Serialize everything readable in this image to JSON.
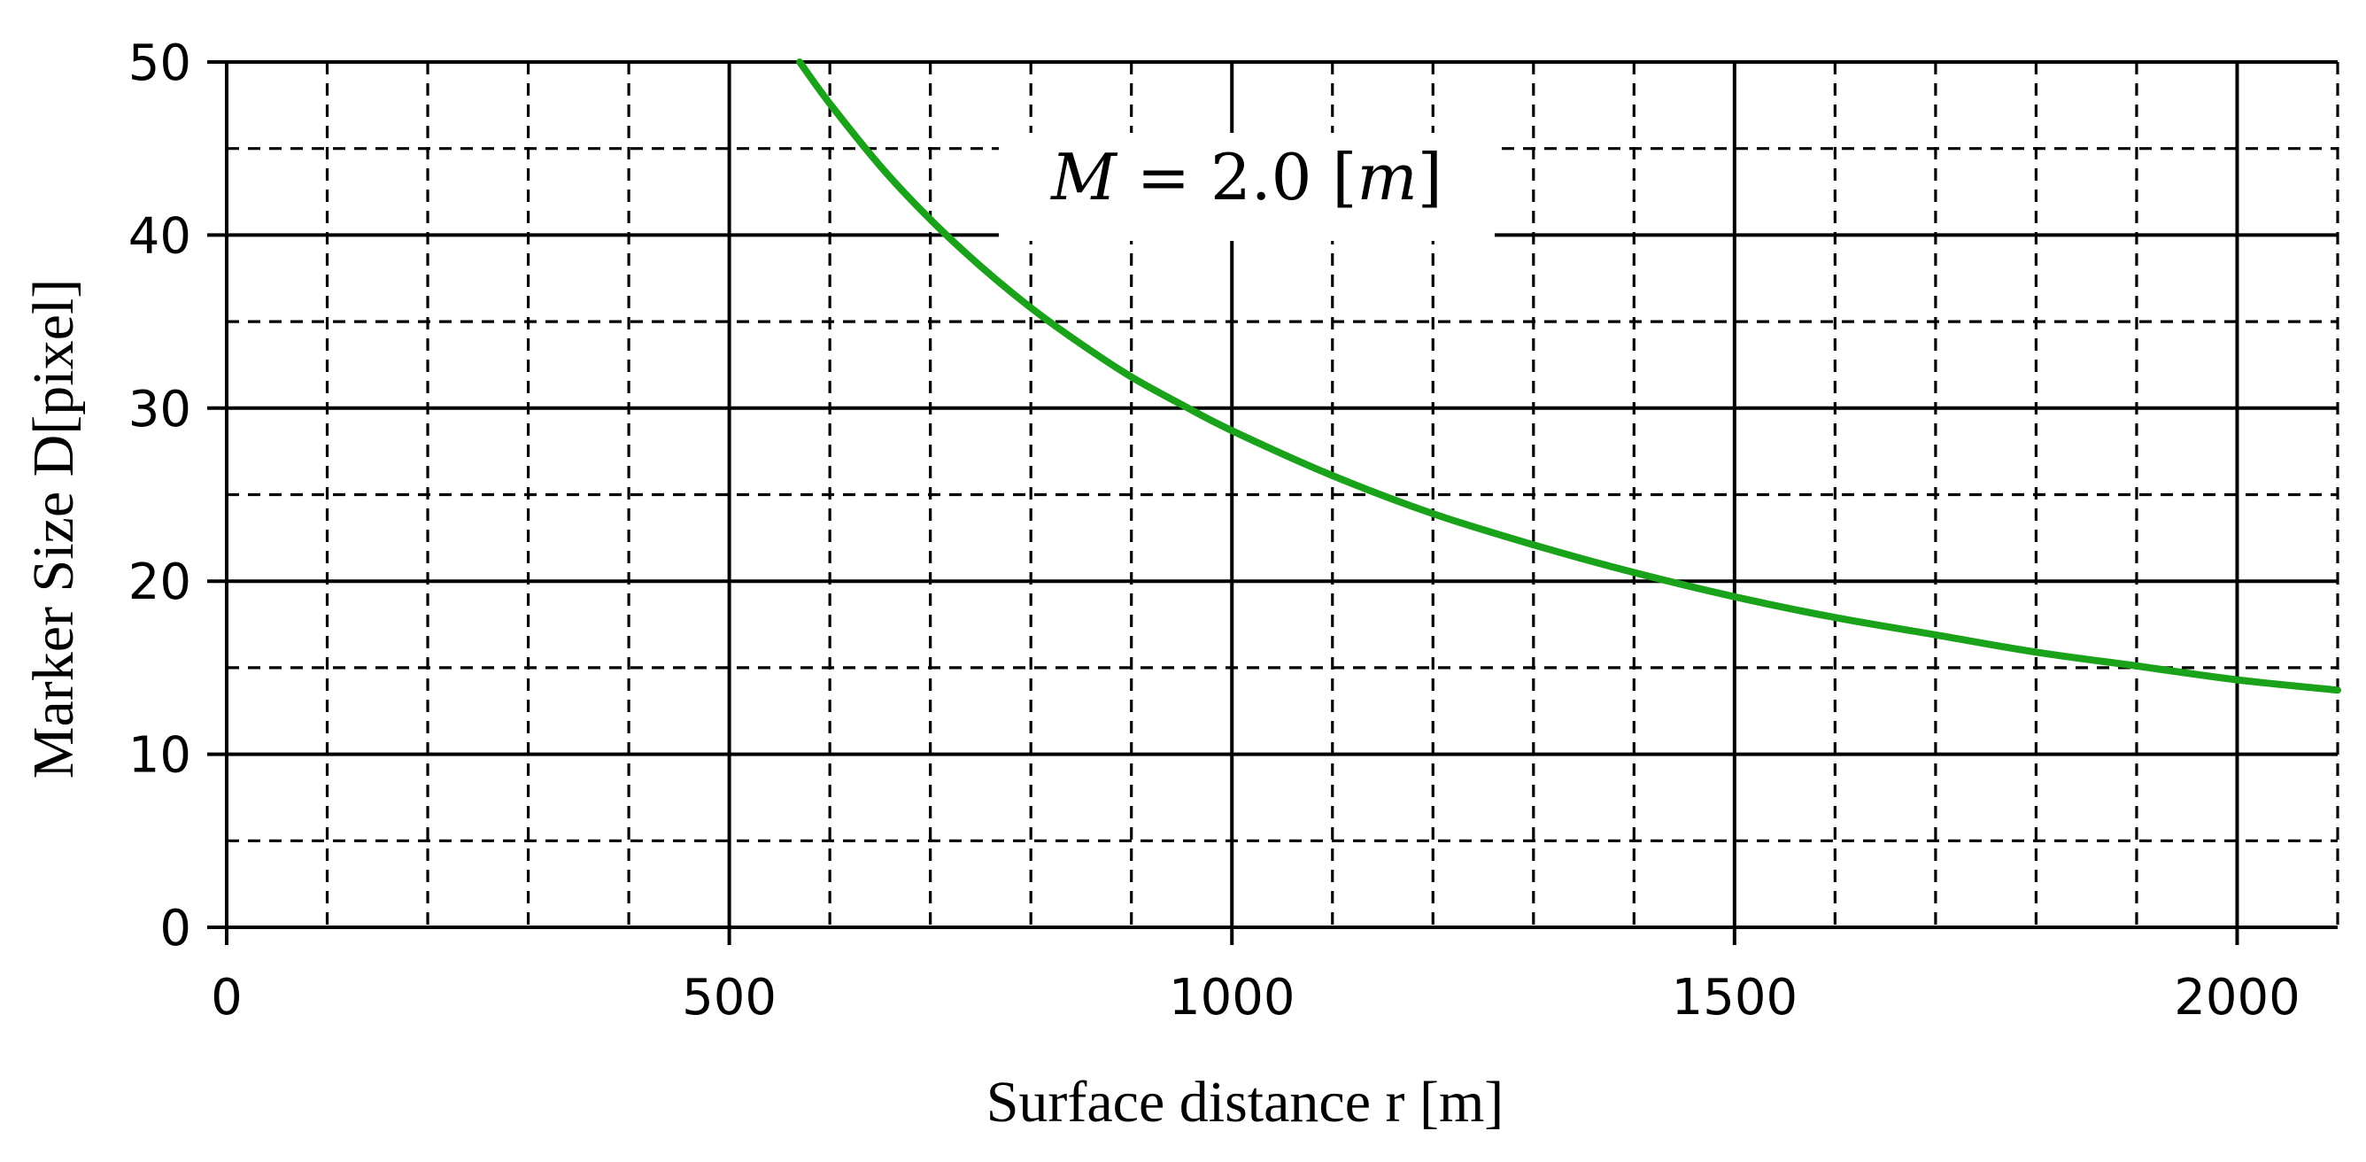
{
  "chart_data": {
    "type": "line",
    "xlabel": "Surface distance r [m]",
    "ylabel": "Marker Size D[pixel]",
    "xlim": [
      0,
      2100
    ],
    "ylim": [
      0,
      50
    ],
    "x_ticks": [
      "0",
      "500",
      "1000",
      "1500",
      "2000"
    ],
    "x_tick_values": [
      0,
      500,
      1000,
      1500,
      2000
    ],
    "y_ticks": [
      "0",
      "10",
      "20",
      "30",
      "40",
      "50"
    ],
    "y_tick_values": [
      0,
      10,
      20,
      30,
      40,
      50
    ],
    "x_minor_step": 100,
    "y_minor_step": 5,
    "grid": true,
    "annotation": {
      "text": "M = 2.0 [m]",
      "var": "M",
      "eq": " = 2.0 [",
      "unit": "m",
      "close": "]"
    },
    "series": [
      {
        "name": "M = 2.0 [m]",
        "color": "#1aa31a",
        "x": [
          570,
          600,
          650,
          700,
          750,
          800,
          850,
          900,
          950,
          1000,
          1100,
          1200,
          1300,
          1400,
          1500,
          1600,
          1700,
          1800,
          1900,
          2000,
          2100
        ],
        "y": [
          50.0,
          47.6,
          44.0,
          40.9,
          38.2,
          35.8,
          33.7,
          31.8,
          30.2,
          28.7,
          26.1,
          23.9,
          22.1,
          20.5,
          19.1,
          17.9,
          16.9,
          15.9,
          15.1,
          14.3,
          13.7
        ]
      }
    ]
  }
}
